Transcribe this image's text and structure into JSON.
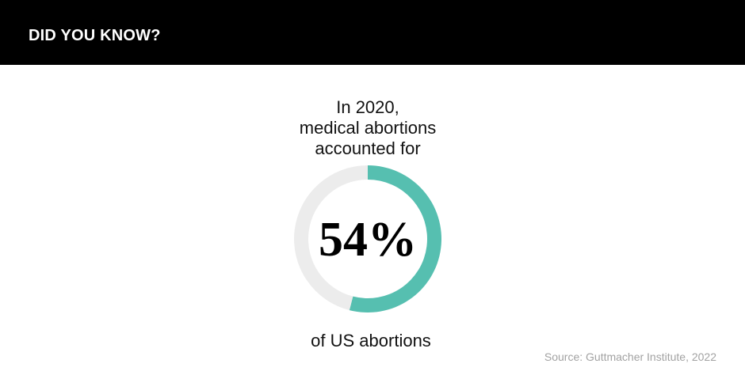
{
  "header": {
    "title": "DID YOU KNOW?"
  },
  "statement": {
    "line_1": "In 2020,",
    "line_2": "medical abortions",
    "line_3": "accounted for",
    "value_label": "54%",
    "trailing": "of US abortions"
  },
  "source": "Source: Guttmacher Institute, 2022",
  "colors": {
    "header_background": "#000000",
    "filled": "#56bfb0",
    "remaining": "#ececec"
  },
  "chart_data": {
    "type": "pie",
    "style": "donut",
    "slices": [
      {
        "label": "",
        "value": 54,
        "color": "#56bfb0"
      },
      {
        "label": "",
        "value": 46,
        "color": "#ececec"
      }
    ],
    "start": "top",
    "direction": "clockwise"
  }
}
